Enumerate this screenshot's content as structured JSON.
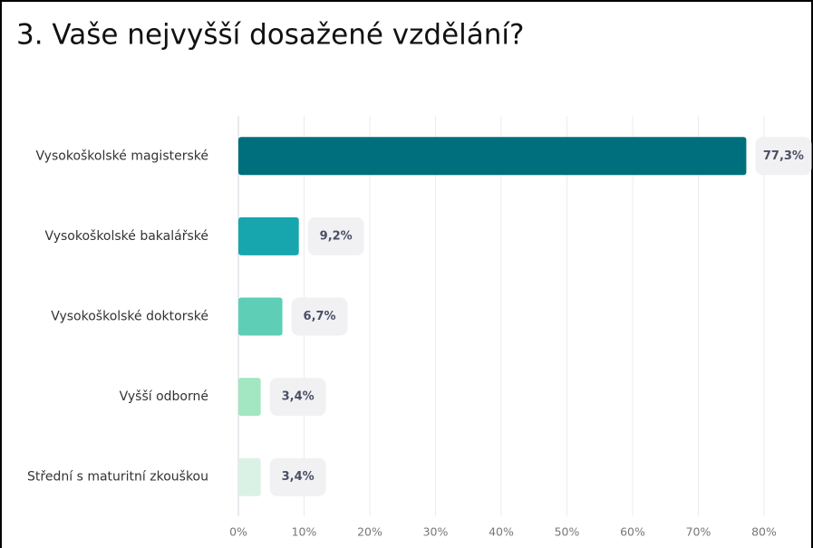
{
  "chart_data": {
    "type": "bar",
    "orientation": "horizontal",
    "title": "3. Vaše nejvyšší dosažené vzdělání?",
    "categories": [
      "Vysokoškolské magisterské",
      "Vysokoškolské bakalářské",
      "Vysokoškolské doktorské",
      "Vyšší odborné",
      "Střední s maturitní zkouškou"
    ],
    "values": [
      77.3,
      9.2,
      6.7,
      3.4,
      3.4
    ],
    "value_labels": [
      "77,3%",
      "9,2%",
      "6,7%",
      "3,4%",
      "3,4%"
    ],
    "colors": [
      "#006f7d",
      "#17a6ad",
      "#5ecfb6",
      "#a3e6c2",
      "#daf2e6"
    ],
    "xlim": [
      0,
      80
    ],
    "xticks": [
      {
        "value": 0,
        "label": "0%"
      },
      {
        "value": 10,
        "label": "10%"
      },
      {
        "value": 20,
        "label": "20%"
      },
      {
        "value": 30,
        "label": "30%"
      },
      {
        "value": 40,
        "label": "40%"
      },
      {
        "value": 50,
        "label": "50%"
      },
      {
        "value": 60,
        "label": "60%"
      },
      {
        "value": 70,
        "label": "70%"
      },
      {
        "value": 80,
        "label": "80%"
      }
    ],
    "grid": true
  }
}
